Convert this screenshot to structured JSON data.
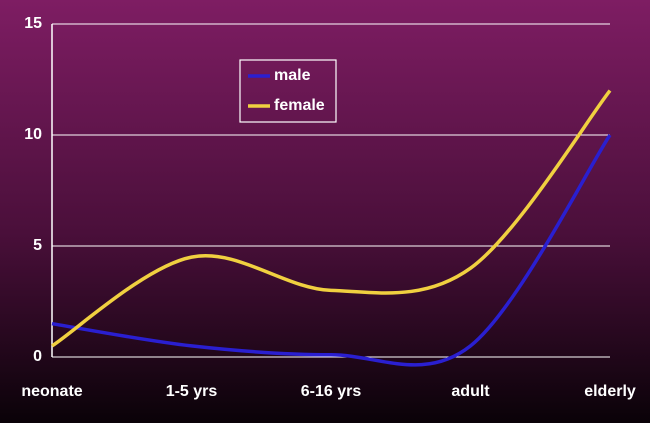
{
  "chart_data": {
    "type": "line",
    "categories": [
      "neonate",
      "1-5 yrs",
      "6-16 yrs",
      "adult",
      "elderly"
    ],
    "series": [
      {
        "name": "male",
        "color": "#2a1fd0",
        "values": [
          1.5,
          0.5,
          0.1,
          0.5,
          10
        ]
      },
      {
        "name": "female",
        "color": "#f0d040",
        "values": [
          0.5,
          4.5,
          3,
          4,
          12
        ]
      }
    ],
    "ylim": [
      0,
      15
    ],
    "yticks": [
      0,
      5,
      10,
      15
    ],
    "grid": true,
    "smooth": true
  }
}
